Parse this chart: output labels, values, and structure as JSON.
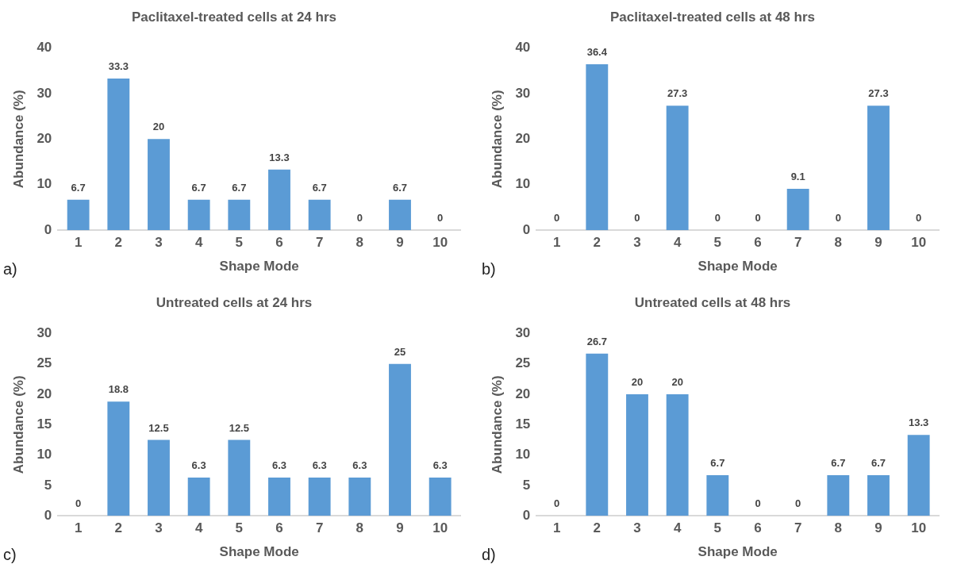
{
  "chart_data": [
    {
      "type": "bar",
      "title": "Paclitaxel-treated cells at 24 hrs",
      "xlabel": "Shape Mode",
      "ylabel": "Abundance (%)",
      "categories": [
        "1",
        "2",
        "3",
        "4",
        "5",
        "6",
        "7",
        "8",
        "9",
        "10"
      ],
      "values": [
        6.7,
        33.3,
        20,
        6.7,
        6.7,
        13.3,
        6.7,
        0,
        6.7,
        0
      ],
      "color": "#5b9bd5",
      "ylim": [
        0,
        40
      ],
      "yticks": [
        0,
        10,
        20,
        30,
        40
      ],
      "grid": false,
      "data_labels": true,
      "annotations": [
        "a)"
      ]
    },
    {
      "type": "bar",
      "title": "Paclitaxel-treated cells at 48 hrs",
      "xlabel": "Shape Mode",
      "ylabel": "Abundance (%)",
      "categories": [
        "1",
        "2",
        "3",
        "4",
        "5",
        "6",
        "7",
        "8",
        "9",
        "10"
      ],
      "values": [
        0,
        36.4,
        0,
        27.3,
        0,
        0,
        9.1,
        0,
        27.3,
        0
      ],
      "color": "#5b9bd5",
      "ylim": [
        0,
        40
      ],
      "yticks": [
        0,
        10,
        20,
        30,
        40
      ],
      "grid": false,
      "data_labels": true,
      "annotations": [
        "b)"
      ]
    },
    {
      "type": "bar",
      "title": "Untreated cells at 24 hrs",
      "xlabel": "Shape Mode",
      "ylabel": "Abundance (%)",
      "categories": [
        "1",
        "2",
        "3",
        "4",
        "5",
        "6",
        "7",
        "8",
        "9",
        "10"
      ],
      "values": [
        0,
        18.8,
        12.5,
        6.3,
        12.5,
        6.3,
        6.3,
        6.3,
        25,
        6.3
      ],
      "color": "#5b9bd5",
      "ylim": [
        0,
        30
      ],
      "yticks": [
        0,
        5,
        10,
        15,
        20,
        25,
        30
      ],
      "grid": false,
      "data_labels": true,
      "annotations": [
        "c)"
      ]
    },
    {
      "type": "bar",
      "title": "Untreated cells at 48 hrs",
      "xlabel": "Shape Mode",
      "ylabel": "Abundance (%)",
      "categories": [
        "1",
        "2",
        "3",
        "4",
        "5",
        "6",
        "7",
        "8",
        "9",
        "10"
      ],
      "values": [
        0,
        26.7,
        20,
        20,
        6.7,
        0,
        0,
        6.7,
        6.7,
        13.3
      ],
      "color": "#5b9bd5",
      "ylim": [
        0,
        30
      ],
      "yticks": [
        0,
        5,
        10,
        15,
        20,
        25,
        30
      ],
      "grid": false,
      "data_labels": true,
      "annotations": [
        "d)"
      ]
    }
  ]
}
